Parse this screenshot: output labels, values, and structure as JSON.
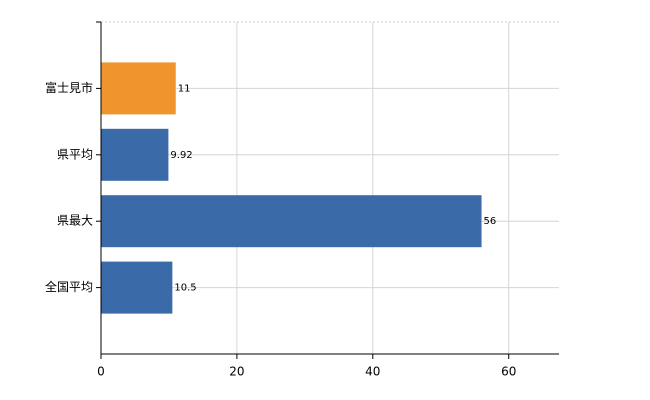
{
  "chart_data": {
    "type": "barh",
    "categories": [
      "富士見市",
      "県平均",
      "県最大",
      "全国平均"
    ],
    "values": [
      11,
      9.92,
      56,
      10.5
    ],
    "colors": [
      "#f0952e",
      "#3a6aa8",
      "#3a6aa8",
      "#3a6aa8"
    ],
    "xlim": [
      0,
      67.4
    ],
    "xticks": [
      0,
      20,
      40,
      60
    ],
    "grid": true
  }
}
